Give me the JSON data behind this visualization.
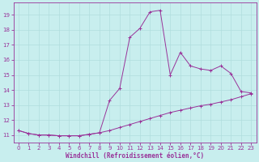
{
  "xlabel": "Windchill (Refroidissement éolien,°C)",
  "ylabel": "",
  "background_color": "#c8eeee",
  "grid_color": "#b0dddd",
  "line_color": "#993399",
  "spine_color": "#993399",
  "xlim": [
    -0.5,
    23.5
  ],
  "ylim": [
    10.5,
    19.8
  ],
  "xticks": [
    0,
    1,
    2,
    3,
    4,
    5,
    6,
    7,
    8,
    9,
    10,
    11,
    12,
    13,
    14,
    15,
    16,
    17,
    18,
    19,
    20,
    21,
    22,
    23
  ],
  "yticks": [
    11,
    12,
    13,
    14,
    15,
    16,
    17,
    18,
    19
  ],
  "line1_x": [
    0,
    1,
    2,
    3,
    4,
    5,
    6,
    7,
    8,
    9,
    10,
    11,
    12,
    13,
    14,
    15,
    16,
    17,
    18,
    19,
    20,
    21,
    22,
    23
  ],
  "line1_y": [
    11.3,
    11.1,
    11.0,
    11.0,
    10.95,
    10.95,
    10.95,
    11.05,
    11.15,
    11.3,
    11.5,
    11.7,
    11.9,
    12.1,
    12.3,
    12.5,
    12.65,
    12.8,
    12.95,
    13.05,
    13.2,
    13.35,
    13.55,
    13.75
  ],
  "line2_x": [
    0,
    1,
    2,
    3,
    4,
    5,
    6,
    7,
    8,
    9,
    10,
    11,
    12,
    13,
    14,
    15,
    16,
    17,
    18,
    19,
    20,
    21,
    22,
    23
  ],
  "line2_y": [
    11.3,
    11.1,
    11.0,
    11.0,
    10.95,
    10.95,
    10.95,
    11.05,
    11.15,
    13.3,
    14.1,
    17.5,
    18.1,
    19.2,
    19.3,
    15.0,
    16.5,
    15.6,
    15.4,
    15.3,
    15.6,
    15.1,
    13.9,
    13.8
  ],
  "tick_fontsize": 5,
  "xlabel_fontsize": 5.5
}
